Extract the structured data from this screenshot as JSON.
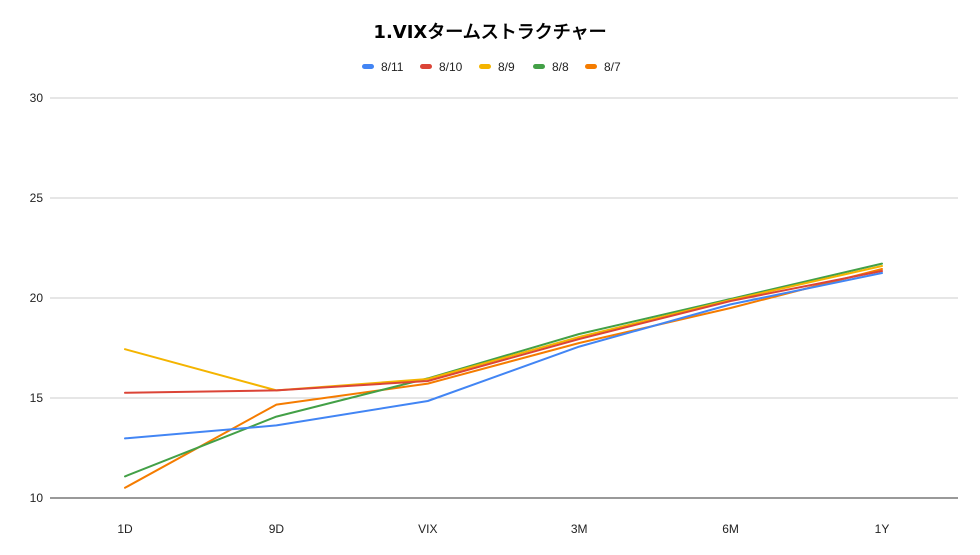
{
  "chart_data": {
    "type": "line",
    "title": "1.VIXタームストラクチャー",
    "categories": [
      "1D",
      "9D",
      "VIX",
      "3M",
      "6M",
      "1Y"
    ],
    "ylim": [
      10,
      30
    ],
    "yticks": [
      10,
      15,
      20,
      25,
      30
    ],
    "grid": true,
    "legend_position": "top",
    "series": [
      {
        "name": "8/11",
        "color": "#4285f4",
        "values": [
          12.98,
          13.63,
          14.85,
          17.57,
          19.68,
          21.25
        ]
      },
      {
        "name": "8/10",
        "color": "#db4437",
        "values": [
          15.26,
          15.38,
          15.85,
          17.95,
          19.85,
          21.35
        ]
      },
      {
        "name": "8/9",
        "color": "#f4b400",
        "values": [
          17.44,
          15.38,
          15.95,
          18.05,
          19.9,
          21.6
        ]
      },
      {
        "name": "8/8",
        "color": "#43a047",
        "values": [
          11.08,
          14.07,
          15.98,
          18.2,
          19.95,
          21.72
        ]
      },
      {
        "name": "8/7",
        "color": "#f57c00",
        "values": [
          10.51,
          14.67,
          15.72,
          17.75,
          19.5,
          21.45
        ]
      }
    ]
  }
}
